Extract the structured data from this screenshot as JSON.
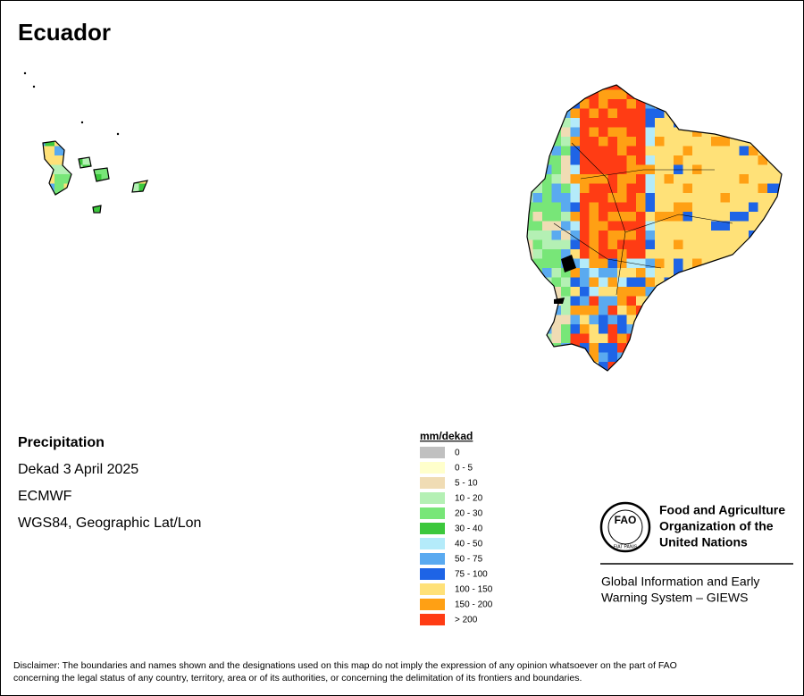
{
  "title": "Ecuador",
  "info": [
    "Precipitation",
    "Dekad 3 April 2025",
    "ECMWF",
    "WGS84, Geographic Lat/Lon"
  ],
  "legend": {
    "title": "mm/dekad",
    "items": [
      {
        "label": "0",
        "color": "#c0c0c0"
      },
      {
        "label": "0 - 5",
        "color": "#ffffcc"
      },
      {
        "label": "5 - 10",
        "color": "#f0dcb4"
      },
      {
        "label": "10 - 20",
        "color": "#b4f0b4"
      },
      {
        "label": "20 - 30",
        "color": "#78e678"
      },
      {
        "label": "30 - 40",
        "color": "#3cc83c"
      },
      {
        "label": "40 - 50",
        "color": "#b4ebfa"
      },
      {
        "label": "50 - 75",
        "color": "#5aaaf0"
      },
      {
        "label": "75 - 100",
        "color": "#1e64e6"
      },
      {
        "label": "100 - 150",
        "color": "#ffe178"
      },
      {
        "label": "150 - 200",
        "color": "#ffa014"
      },
      {
        "label": "> 200",
        "color": "#ff3c14"
      }
    ]
  },
  "logo": {
    "emblem": "FAO",
    "motto": "FIAT PANIS",
    "org": [
      "Food and Agriculture",
      "Organization of the",
      "United Nations"
    ],
    "system": [
      "Global Information and Early",
      "Warning System – GIEWS"
    ]
  },
  "disclaimer": [
    "Disclaimer: The boundaries and names shown and the designations used on this map do not imply the expression of any opinion whatsoever on the part of FAO",
    "concerning the legal status of any country, territory, area or of its authorities, or concerning the delimitation of its frontiers and boundaries."
  ]
}
